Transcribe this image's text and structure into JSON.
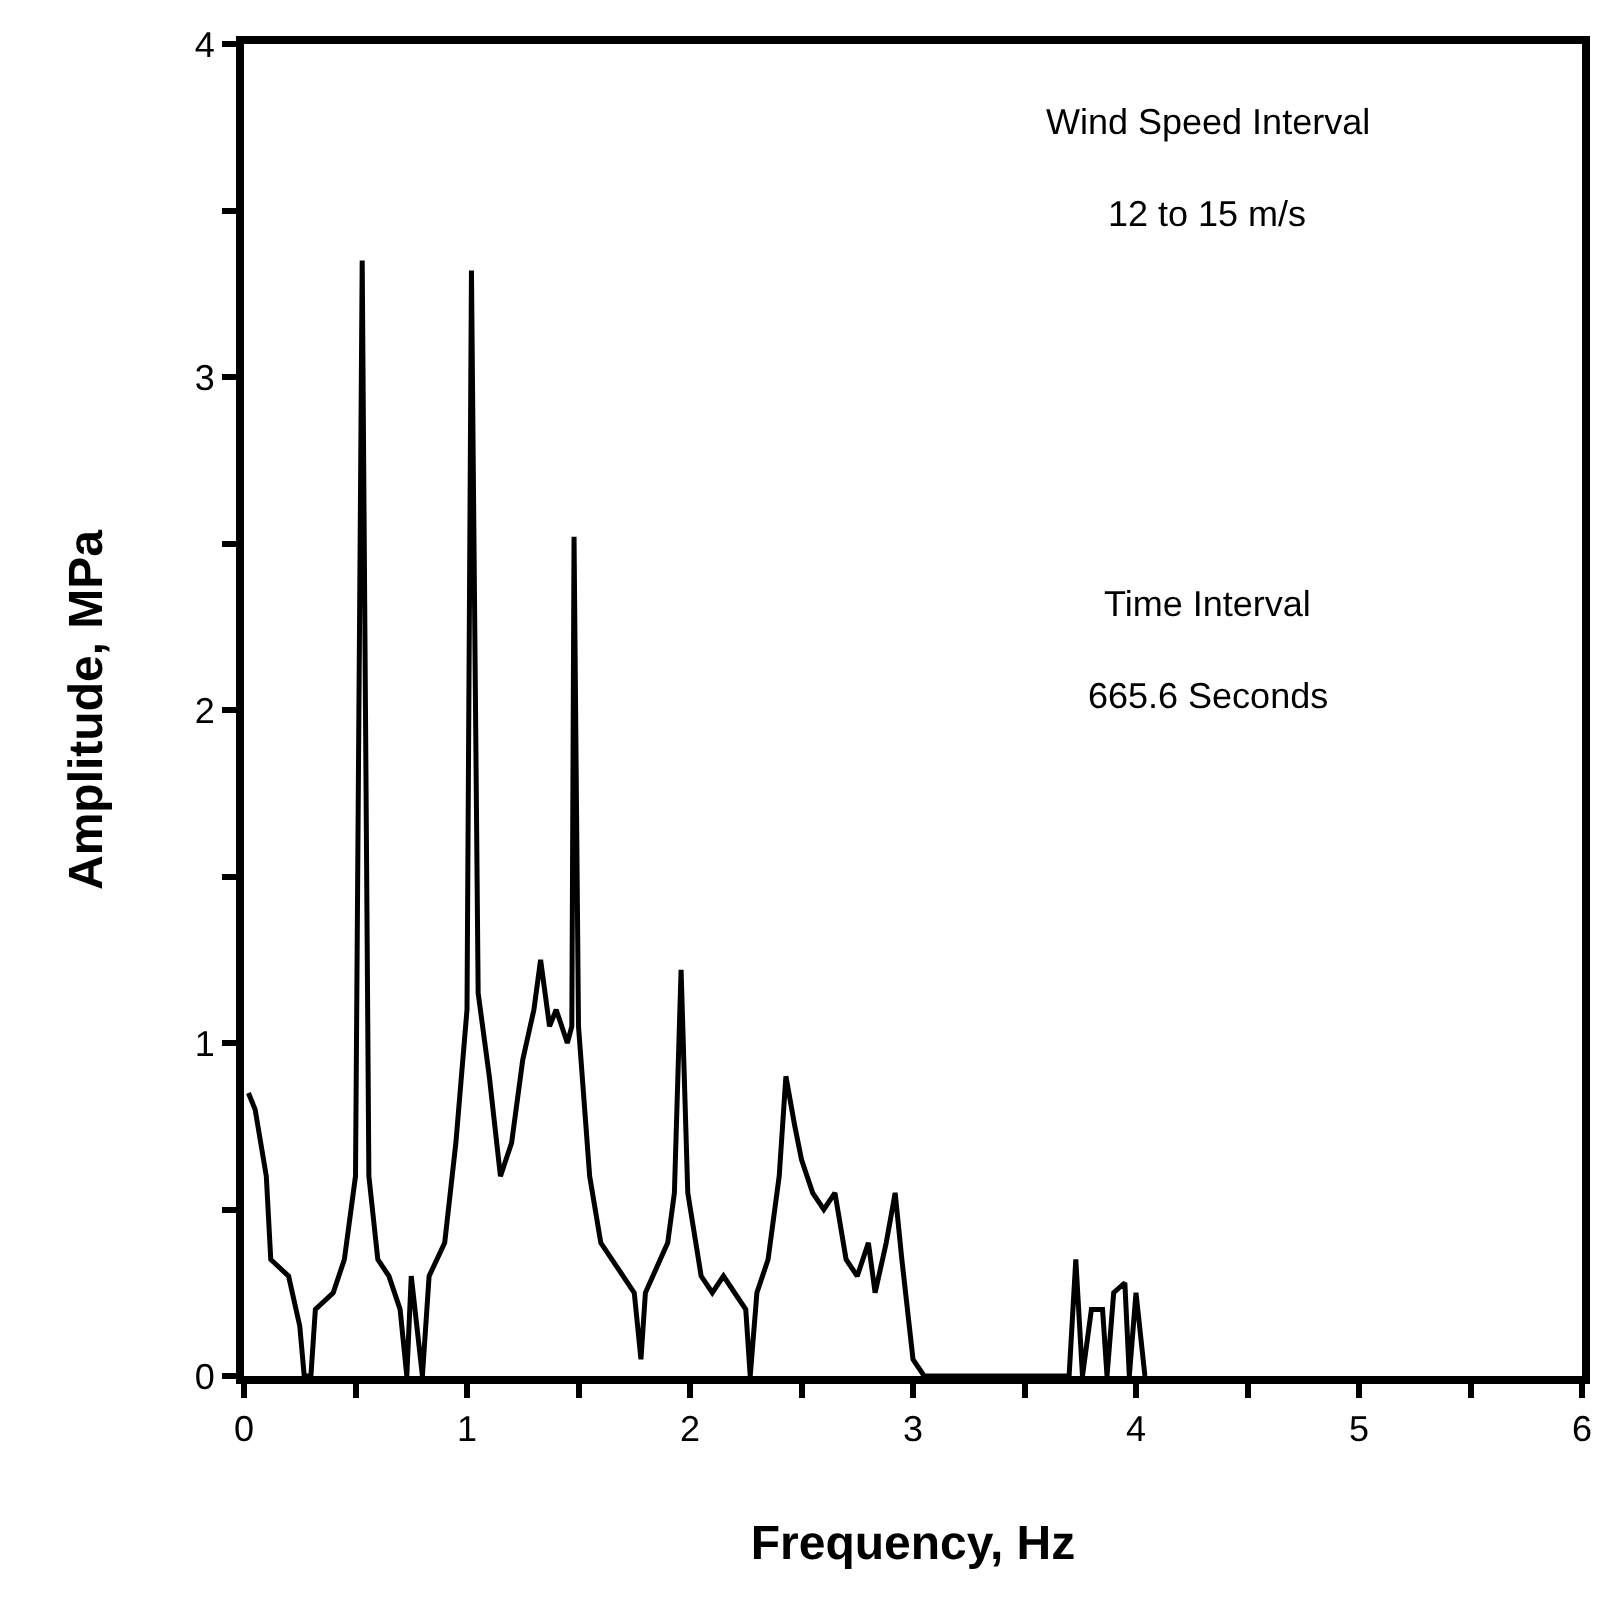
{
  "chart_data": {
    "type": "line",
    "xlabel": "Frequency, Hz",
    "ylabel": "Amplitude, MPa",
    "annotations": [
      "Wind Speed Interval",
      "12 to 15 m/s",
      "Time Interval",
      "665.6 Seconds"
    ],
    "x": [
      0.02,
      0.05,
      0.1,
      0.12,
      0.2,
      0.25,
      0.27,
      0.3,
      0.32,
      0.4,
      0.45,
      0.5,
      0.53,
      0.56,
      0.6,
      0.65,
      0.7,
      0.73,
      0.75,
      0.8,
      0.83,
      0.9,
      0.95,
      1.0,
      1.02,
      1.05,
      1.1,
      1.15,
      1.2,
      1.25,
      1.3,
      1.33,
      1.37,
      1.4,
      1.45,
      1.47,
      1.48,
      1.5,
      1.55,
      1.6,
      1.7,
      1.75,
      1.78,
      1.8,
      1.9,
      1.93,
      1.96,
      1.99,
      2.05,
      2.1,
      2.15,
      2.2,
      2.25,
      2.27,
      2.3,
      2.35,
      2.4,
      2.43,
      2.47,
      2.5,
      2.55,
      2.6,
      2.65,
      2.7,
      2.75,
      2.8,
      2.83,
      2.88,
      2.92,
      2.95,
      3.0,
      3.05,
      3.7,
      3.73,
      3.76,
      3.8,
      3.85,
      3.87,
      3.9,
      3.95,
      3.97,
      4.0,
      4.04
    ],
    "series": [
      {
        "color": "#000000",
        "values": [
          0.85,
          0.8,
          0.6,
          0.35,
          0.3,
          0.15,
          0,
          0,
          0.2,
          0.25,
          0.35,
          0.6,
          3.35,
          0.6,
          0.35,
          0.3,
          0.2,
          0,
          0.3,
          0,
          0.3,
          0.4,
          0.7,
          1.1,
          3.32,
          1.15,
          0.9,
          0.6,
          0.7,
          0.95,
          1.1,
          1.25,
          1.05,
          1.1,
          1.0,
          1.05,
          2.52,
          1.05,
          0.6,
          0.4,
          0.3,
          0.25,
          0.05,
          0.25,
          0.4,
          0.55,
          1.22,
          0.55,
          0.3,
          0.25,
          0.3,
          0.25,
          0.2,
          0,
          0.25,
          0.35,
          0.6,
          0.9,
          0.75,
          0.65,
          0.55,
          0.5,
          0.55,
          0.35,
          0.3,
          0.4,
          0.25,
          0.4,
          0.55,
          0.35,
          0.05,
          0,
          0,
          0.35,
          0,
          0.2,
          0.2,
          0,
          0.25,
          0.28,
          0,
          0.25,
          0
        ]
      }
    ],
    "xlim": [
      0,
      6
    ],
    "ylim": [
      0,
      4
    ],
    "xticks": [
      0,
      {
        "value": 0.5,
        "label": null
      },
      1,
      {
        "value": 1.5,
        "label": null
      },
      2,
      {
        "value": 2.5,
        "label": null
      },
      3,
      {
        "value": 3.5,
        "label": null
      },
      4,
      {
        "value": 4.5,
        "label": null
      },
      5,
      {
        "value": 5.5,
        "label": null
      },
      6
    ],
    "yticks": [
      0,
      {
        "value": 0.5,
        "label": null
      },
      1,
      {
        "value": 1.5,
        "label": null
      },
      2,
      {
        "value": 2.5,
        "label": null
      },
      3,
      {
        "value": 3.5,
        "label": null
      },
      4
    ],
    "legend": false,
    "marker": "none",
    "line_style": "solid"
  }
}
